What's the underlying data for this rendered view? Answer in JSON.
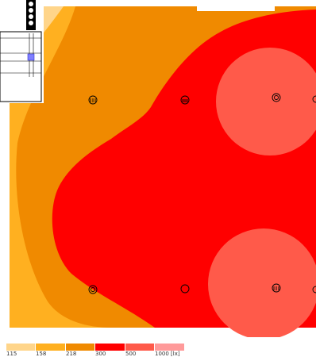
{
  "isoline_plot": {
    "unit_label": "1000 [lx]",
    "levels": [
      {
        "value": "115",
        "color": "#ffd58a"
      },
      {
        "value": "158",
        "color": "#ffb020"
      },
      {
        "value": "218",
        "color": "#f08a00"
      },
      {
        "value": "300",
        "color": "#ff0000"
      },
      {
        "value": "500",
        "color": "#ff5a4a"
      },
      {
        "value": "1000",
        "color": "#ff9a9a"
      }
    ]
  },
  "luminaires": {
    "count": 8,
    "symbol": "luminaire-icon"
  },
  "inset": {
    "symbol": "floor-plan-inset"
  },
  "colors": {
    "background": "#ffffff",
    "outline": "#000000"
  }
}
